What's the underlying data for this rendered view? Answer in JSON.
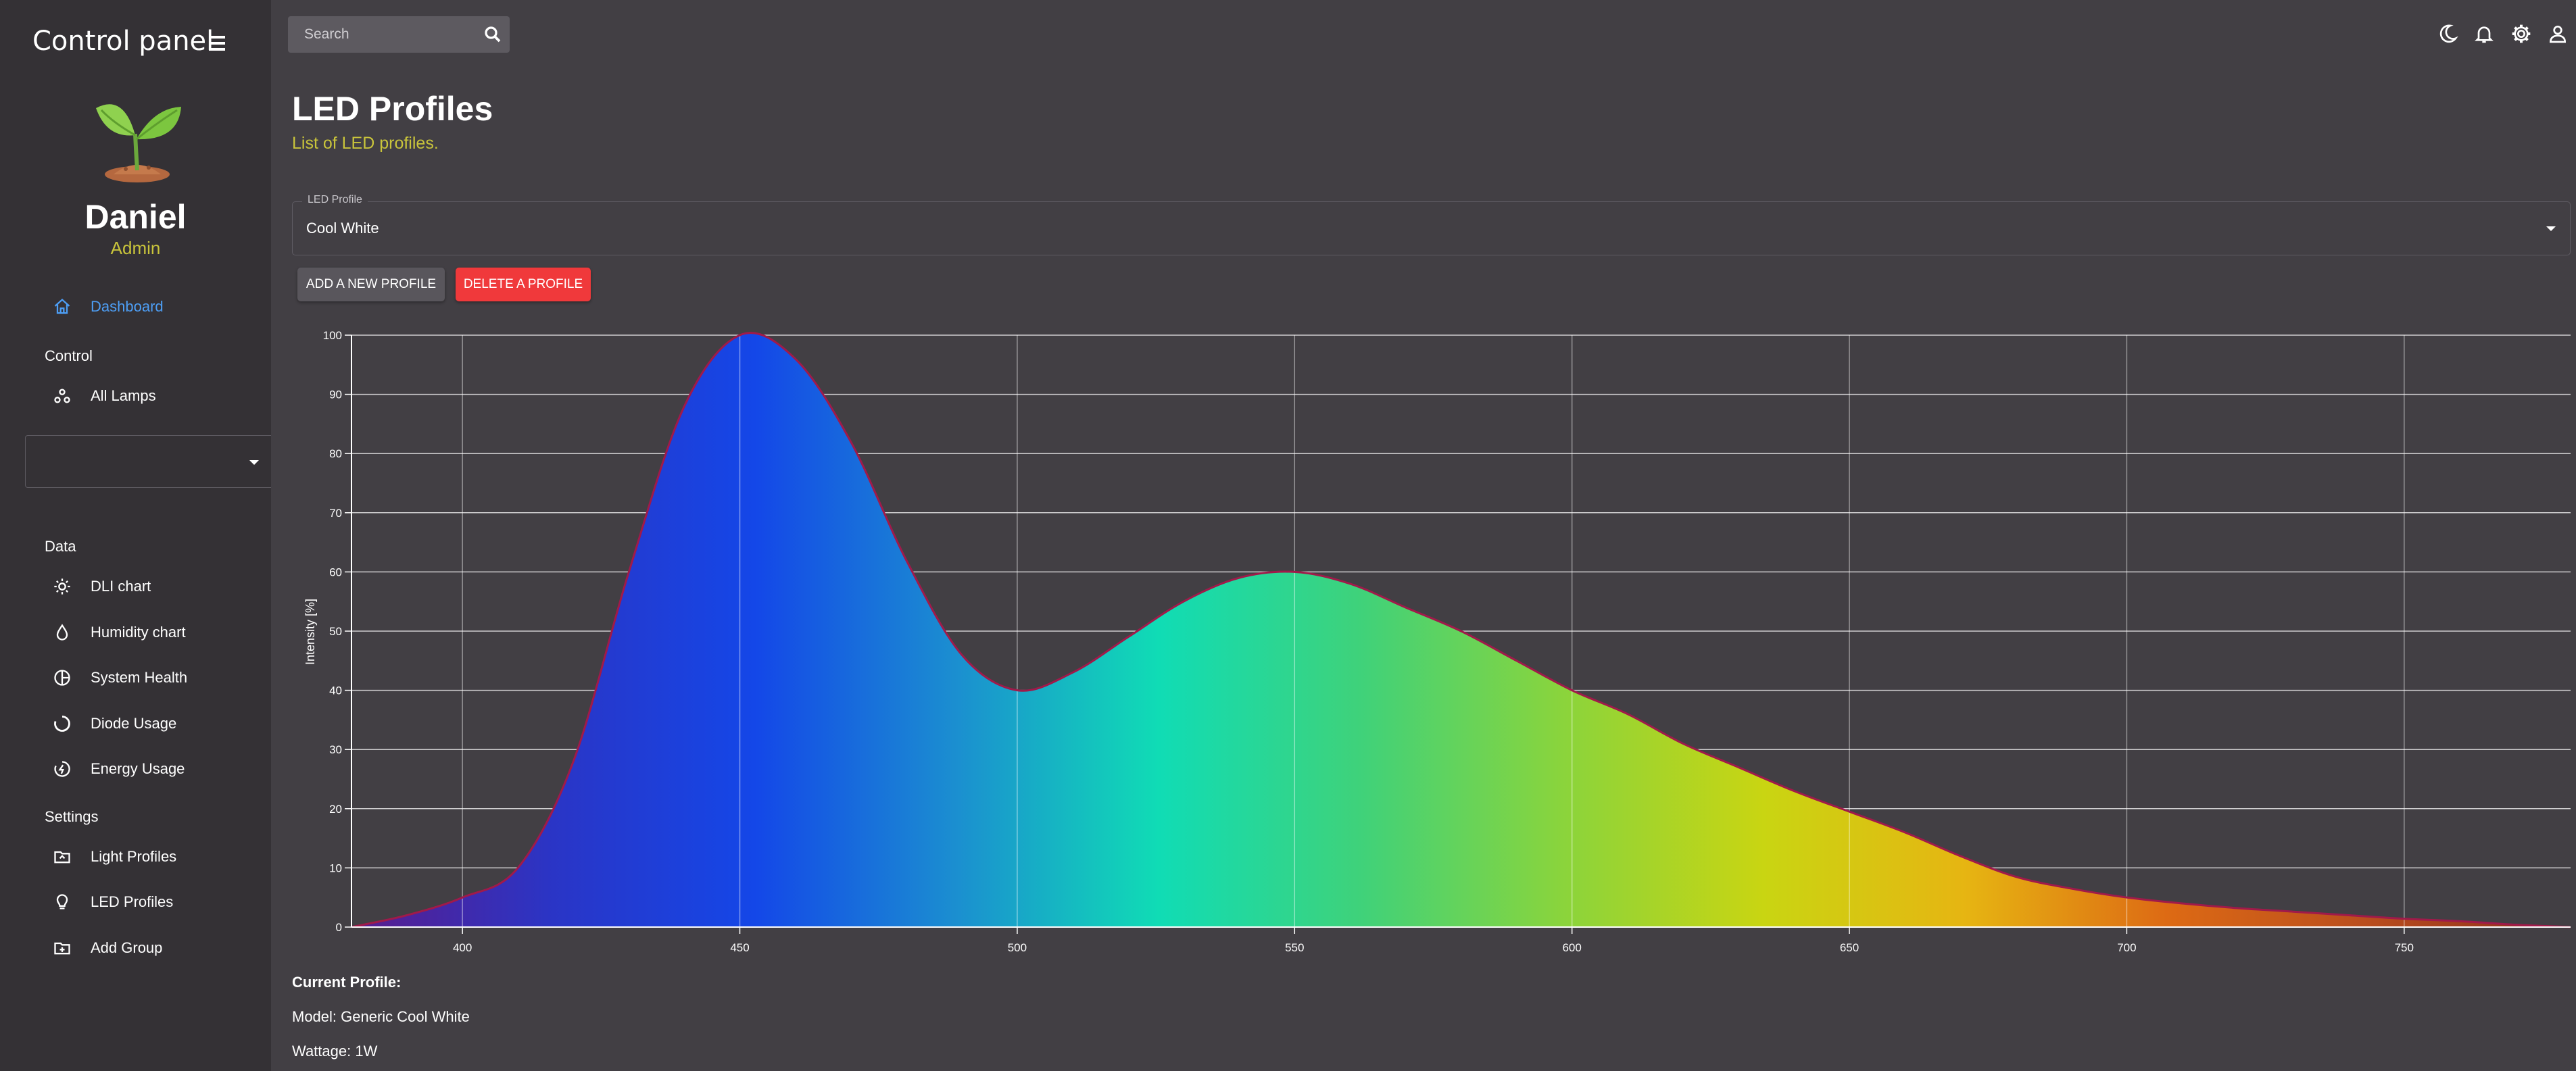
{
  "sidebar": {
    "title": "Control panel",
    "user": {
      "name": "Daniel",
      "role": "Admin"
    },
    "nav": [
      {
        "label": "Dashboard",
        "icon": "home-icon",
        "active": true
      },
      {
        "section": "Control"
      },
      {
        "label": "All Lamps",
        "icon": "lamps-icon"
      },
      {
        "section": "Data"
      },
      {
        "label": "DLI chart",
        "icon": "sun-icon"
      },
      {
        "label": "Humidity chart",
        "icon": "drop-icon"
      },
      {
        "label": "System Health",
        "icon": "health-icon"
      },
      {
        "label": "Diode Usage",
        "icon": "circle-icon"
      },
      {
        "label": "Energy Usage",
        "icon": "energy-icon"
      },
      {
        "section": "Settings"
      },
      {
        "label": "Light Profiles",
        "icon": "folder-icon"
      },
      {
        "label": "LED Profiles",
        "icon": "bulb-icon"
      },
      {
        "label": "Add Group",
        "icon": "folder-add-icon"
      }
    ]
  },
  "search": {
    "placeholder": "Search"
  },
  "page": {
    "title": "LED Profiles",
    "subtitle": "List of LED profiles."
  },
  "profile_select": {
    "label": "LED Profile",
    "value": "Cool White"
  },
  "buttons": {
    "add": "ADD A NEW PROFILE",
    "delete": "DELETE A PROFILE"
  },
  "chart_data": {
    "type": "area",
    "ylabel": "Intensity [%]",
    "xlabel": "",
    "xlim": [
      380,
      780
    ],
    "ylim": [
      0,
      100
    ],
    "x_ticks": [
      400,
      450,
      500,
      550,
      600,
      650,
      700,
      750
    ],
    "y_ticks": [
      0,
      10,
      20,
      30,
      40,
      50,
      60,
      70,
      80,
      90,
      100
    ],
    "grid": true,
    "x": [
      380,
      390,
      400,
      410,
      420,
      430,
      440,
      450,
      460,
      470,
      480,
      490,
      500,
      510,
      520,
      530,
      540,
      550,
      560,
      570,
      580,
      590,
      600,
      610,
      620,
      630,
      640,
      650,
      660,
      670,
      680,
      690,
      700,
      710,
      720,
      730,
      740,
      750,
      760,
      770,
      780
    ],
    "values": [
      0,
      2,
      5,
      10,
      28,
      60,
      88,
      100,
      96,
      82,
      62,
      46,
      40,
      43,
      49,
      55,
      59,
      60,
      58,
      54,
      50,
      45,
      40,
      36,
      31,
      27,
      23,
      19.5,
      16,
      12,
      8.5,
      6.5,
      5,
      4,
      3.2,
      2.6,
      2,
      1.4,
      1,
      0.4,
      0
    ],
    "line_color": "#a01a4a",
    "gradient_colors": [
      "#5a1c8c",
      "#2a35c6",
      "#1447e8",
      "#1b8fd0",
      "#10dcb5",
      "#3fd27a",
      "#8ad43c",
      "#c9d512",
      "#e6b512",
      "#dd6a14",
      "#b94d1e",
      "#8a2b1c"
    ]
  },
  "current_profile": {
    "heading": "Current Profile:",
    "model": "Model: Generic Cool White",
    "wattage": "Wattage: 1W"
  }
}
